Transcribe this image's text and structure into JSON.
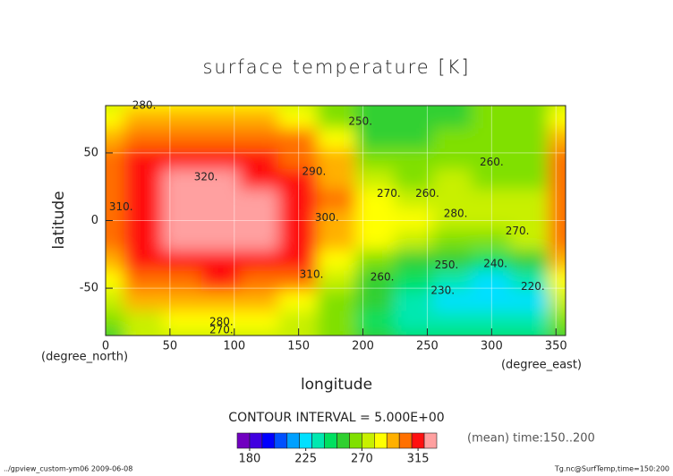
{
  "chart_data": {
    "type": "contour",
    "title": "surface temperature [K]",
    "x_label": "longitude",
    "y_label": "latitude",
    "x_units": "(degree_east)",
    "y_units": "(degree_north)",
    "x": [
      0,
      30,
      60,
      90,
      120,
      150,
      180,
      210,
      240,
      270,
      300,
      330,
      360
    ],
    "y": [
      90,
      75,
      60,
      45,
      30,
      15,
      0,
      -15,
      -30,
      -45,
      -60,
      -75,
      -90
    ],
    "z": [
      [
        272,
        280,
        282,
        282,
        282,
        278,
        268,
        258,
        255,
        258,
        262,
        265,
        272
      ],
      [
        285,
        293,
        295,
        295,
        293,
        285,
        265,
        252,
        250,
        255,
        262,
        268,
        285
      ],
      [
        292,
        302,
        306,
        306,
        305,
        300,
        282,
        258,
        255,
        262,
        265,
        262,
        292
      ],
      [
        300,
        310,
        313,
        313,
        310,
        305,
        290,
        265,
        262,
        265,
        262,
        260,
        300
      ],
      [
        305,
        316,
        320,
        320,
        316,
        310,
        296,
        272,
        268,
        270,
        268,
        268,
        305
      ],
      [
        306,
        318,
        322,
        323,
        320,
        315,
        300,
        280,
        278,
        276,
        274,
        275,
        306
      ],
      [
        305,
        318,
        322,
        323,
        322,
        316,
        298,
        288,
        282,
        275,
        270,
        270,
        305
      ],
      [
        300,
        315,
        320,
        321,
        320,
        314,
        295,
        280,
        270,
        268,
        268,
        270,
        300
      ],
      [
        290,
        310,
        316,
        318,
        316,
        310,
        288,
        268,
        258,
        250,
        248,
        255,
        290
      ],
      [
        282,
        302,
        308,
        310,
        308,
        300,
        275,
        258,
        245,
        235,
        228,
        235,
        282
      ],
      [
        275,
        290,
        295,
        296,
        295,
        285,
        268,
        250,
        232,
        225,
        220,
        225,
        275
      ],
      [
        265,
        275,
        280,
        282,
        280,
        275,
        262,
        248,
        238,
        232,
        230,
        235,
        265
      ],
      [
        258,
        270,
        275,
        276,
        275,
        270,
        260,
        250,
        245,
        242,
        242,
        245,
        258
      ]
    ],
    "xlim": [
      0,
      357.5
    ],
    "ylim": [
      -85,
      85
    ],
    "xticks": [
      0,
      50,
      100,
      150,
      200,
      250,
      300,
      350
    ],
    "yticks": [
      -50,
      0,
      50
    ],
    "contour_labels": [
      {
        "x": 30,
        "y": 85,
        "value": 280,
        "label": "280."
      },
      {
        "x": 198,
        "y": 73,
        "value": 250,
        "label": "250."
      },
      {
        "x": 300,
        "y": 43,
        "value": 260,
        "label": "260."
      },
      {
        "x": 162,
        "y": 36,
        "value": 290,
        "label": "290."
      },
      {
        "x": 78,
        "y": 32,
        "value": 320,
        "label": "320."
      },
      {
        "x": 220,
        "y": 20,
        "value": 270,
        "label": "270."
      },
      {
        "x": 250,
        "y": 20,
        "value": 260,
        "label": "260."
      },
      {
        "x": 272,
        "y": 5,
        "value": 280,
        "label": "280."
      },
      {
        "x": 172,
        "y": 2,
        "value": 300,
        "label": "300."
      },
      {
        "x": 12,
        "y": 10,
        "value": 310,
        "label": "310."
      },
      {
        "x": 320,
        "y": -8,
        "value": 270,
        "label": "270."
      },
      {
        "x": 160,
        "y": -40,
        "value": 310,
        "label": "310."
      },
      {
        "x": 215,
        "y": -42,
        "value": 260,
        "label": "260."
      },
      {
        "x": 265,
        "y": -33,
        "value": 250,
        "label": "250."
      },
      {
        "x": 303,
        "y": -32,
        "value": 240,
        "label": "240."
      },
      {
        "x": 262,
        "y": -52,
        "value": 230,
        "label": "230."
      },
      {
        "x": 332,
        "y": -49,
        "value": 220,
        "label": "220."
      },
      {
        "x": 90,
        "y": -75,
        "value": 280,
        "label": "280."
      },
      {
        "x": 90,
        "y": -81,
        "value": 270,
        "label": "270."
      }
    ],
    "colorbar": {
      "title": "CONTOUR INTERVAL = 5.000E+00",
      "levels": [
        170,
        180,
        190,
        200,
        210,
        220,
        230,
        240,
        250,
        260,
        270,
        280,
        290,
        300,
        310,
        320,
        330
      ],
      "colors": [
        "#7000c0",
        "#4000e0",
        "#0000ff",
        "#0050ff",
        "#00a0ff",
        "#00e0ff",
        "#00e8b0",
        "#00e060",
        "#30d030",
        "#80e000",
        "#c8f000",
        "#ffff00",
        "#ffb000",
        "#ff7000",
        "#ff1010",
        "#ffa0a0"
      ],
      "ticks": [
        180,
        225,
        270,
        315
      ]
    },
    "note": "(mean) time:150..200",
    "footer_left": "../gpview_custom-ym06  2009-06-08",
    "footer_right": "Tg.nc@SurfTemp,time=150:200"
  }
}
